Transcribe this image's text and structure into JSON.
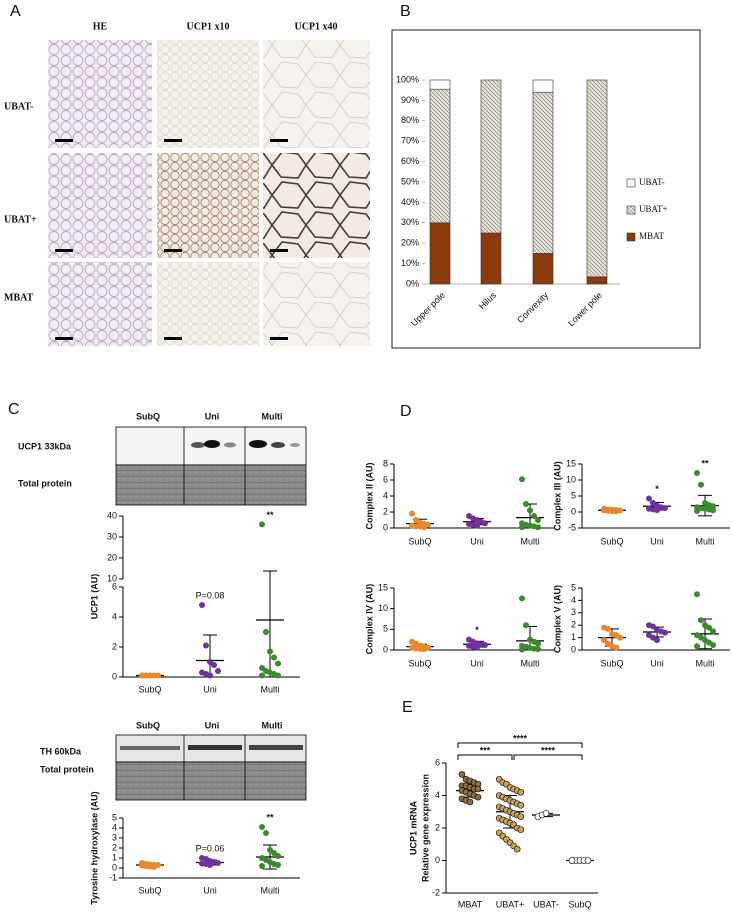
{
  "panel_labels": [
    "A",
    "B",
    "C",
    "D",
    "E"
  ],
  "histology": {
    "columns": [
      "HE",
      "UCP1 x10",
      "UCP1 x40"
    ],
    "rows": [
      "UBAT-",
      "UBAT+",
      "MBAT"
    ]
  },
  "blots": [
    {
      "groups": [
        "SubQ",
        "Uni",
        "Multi"
      ],
      "target": "UCP1 33kDa",
      "loading": "Total protein"
    },
    {
      "groups": [
        "SubQ",
        "Uni",
        "Multi"
      ],
      "target": "TH 60kDa",
      "loading": "Total protein"
    }
  ],
  "chart_data": [
    {
      "type": "stacked_bar",
      "categories": [
        "Upper pole",
        "Hilus",
        "Convexity",
        "Lower pole"
      ],
      "series": [
        {
          "name": "MBAT",
          "color": "#8b3a0e",
          "values": [
            30,
            25,
            15,
            3.5
          ]
        },
        {
          "name": "UBAT+",
          "color": "#e4dfd2",
          "hatch": true,
          "values": [
            65.5,
            75,
            79,
            96.5
          ]
        },
        {
          "name": "UBAT-",
          "color": "#ffffff",
          "values": [
            4.5,
            0,
            6,
            0
          ]
        }
      ],
      "ylim": [
        0,
        100
      ],
      "yticks": [
        {
          "value": 0,
          "label": "0%"
        },
        {
          "value": 10,
          "label": "10%"
        },
        {
          "value": 20,
          "label": "20%"
        },
        {
          "value": 30,
          "label": "30%"
        },
        {
          "value": 40,
          "label": "40%"
        },
        {
          "value": 50,
          "label": "50%"
        },
        {
          "value": 60,
          "label": "60%"
        },
        {
          "value": 70,
          "label": "70%"
        },
        {
          "value": 80,
          "label": "80%"
        },
        {
          "value": 90,
          "label": "90%"
        },
        {
          "value": 100,
          "label": "100%"
        }
      ]
    },
    {
      "type": "strip",
      "y_label": [
        "UCP1 (AU)"
      ],
      "categories": [
        "SubQ",
        "Uni",
        "Multi"
      ],
      "colors": [
        "#e8872c",
        "#7030a0",
        "#3c8a2e"
      ],
      "values": [
        [
          0.1,
          0.1,
          0.1,
          0.1,
          0.1,
          0.1,
          0.1,
          0.1
        ],
        [
          4.8,
          2.1,
          1.0,
          0.8,
          0.4,
          0.3,
          0.2,
          0.1
        ],
        [
          36,
          3.0,
          1.7,
          1.3,
          0.9,
          0.6,
          0.4,
          0.3,
          0.2,
          0.1,
          0.1
        ]
      ],
      "mean": [
        0.1,
        1.1,
        3.8
      ],
      "sd": [
        0.05,
        1.7,
        10
      ],
      "annotations": [
        {
          "category": "Uni",
          "text": "P=0.08"
        },
        {
          "category": "Multi",
          "text": "**"
        }
      ],
      "ylim": [
        0,
        40
      ],
      "y_break": [
        6,
        10
      ],
      "yticks": [
        0,
        2,
        4,
        6,
        10,
        20,
        30,
        40
      ]
    },
    {
      "type": "strip",
      "y_label": [
        "Tyrosine hydroxylase (AU)"
      ],
      "categories": [
        "SubQ",
        "Uni",
        "Multi"
      ],
      "colors": [
        "#e8872c",
        "#7030a0",
        "#3c8a2e"
      ],
      "values": [
        [
          0.5,
          0.4,
          0.35,
          0.3,
          0.3,
          0.25,
          0.2,
          0.15,
          0.1
        ],
        [
          1.0,
          0.9,
          0.7,
          0.6,
          0.5,
          0.45,
          0.4,
          0.3
        ],
        [
          4.1,
          3.5,
          1.8,
          1.5,
          1.2,
          1.0,
          0.8,
          0.6,
          0.4,
          0.3,
          0.2
        ]
      ],
      "mean": [
        0.3,
        0.55,
        1.1
      ],
      "sd": [
        0.15,
        0.25,
        1.2
      ],
      "annotations": [
        {
          "category": "Uni",
          "text": "P=0.06"
        },
        {
          "category": "Multi",
          "text": "**"
        }
      ],
      "ylim": [
        -1,
        5
      ],
      "yticks": [
        -1,
        0,
        1,
        2,
        3,
        4,
        5
      ]
    },
    {
      "type": "strip",
      "y_label": [
        "Complex II (AU)"
      ],
      "categories": [
        "SubQ",
        "Uni",
        "Multi"
      ],
      "colors": [
        "#e8872c",
        "#7030a0",
        "#3c8a2e"
      ],
      "values": [
        [
          1.8,
          1.0,
          0.7,
          0.5,
          0.4,
          0.3,
          0.2,
          0.2,
          0.1
        ],
        [
          1.5,
          1.2,
          1.0,
          0.8,
          0.6,
          0.5,
          0.4,
          0.3
        ],
        [
          6.1,
          3.0,
          2.2,
          1.5,
          1.0,
          0.6,
          0.4,
          0.3,
          0.2,
          0.1,
          0.1
        ]
      ],
      "mean": [
        0.55,
        0.8,
        1.3
      ],
      "sd": [
        0.55,
        0.4,
        1.7
      ],
      "ylim": [
        0,
        8
      ],
      "yticks": [
        0,
        2,
        4,
        6,
        8
      ]
    },
    {
      "type": "strip",
      "y_label": [
        "Complex III (AU)"
      ],
      "categories": [
        "SubQ",
        "Uni",
        "Multi"
      ],
      "colors": [
        "#e8872c",
        "#7030a0",
        "#3c8a2e"
      ],
      "values": [
        [
          1.0,
          0.8,
          0.7,
          0.6,
          0.5,
          0.5,
          0.4,
          0.3,
          0.2
        ],
        [
          4.2,
          2.8,
          2.0,
          1.5,
          1.2,
          1.0,
          0.8,
          0.6
        ],
        [
          12.2,
          8.5,
          2.8,
          2.2,
          1.8,
          1.5,
          1.2,
          1.0,
          0.8,
          0.5,
          0.3
        ]
      ],
      "mean": [
        0.55,
        1.8,
        2.0
      ],
      "sd": [
        0.25,
        1.2,
        3.2
      ],
      "annotations": [
        {
          "category": "Uni",
          "text": "*"
        },
        {
          "category": "Multi",
          "text": "**"
        }
      ],
      "ylim": [
        -5,
        15
      ],
      "yticks": [
        -5,
        0,
        5,
        10,
        15
      ]
    },
    {
      "type": "strip",
      "y_label": [
        "Complex IV (AU)"
      ],
      "categories": [
        "SubQ",
        "Uni",
        "Multi"
      ],
      "colors": [
        "#e8872c",
        "#7030a0",
        "#3c8a2e"
      ],
      "values": [
        [
          2.0,
          1.5,
          1.0,
          0.8,
          0.6,
          0.5,
          0.4,
          0.3,
          0.2
        ],
        [
          2.5,
          2.0,
          1.6,
          1.4,
          1.2,
          1.0,
          0.8,
          0.6
        ],
        [
          12.5,
          6.0,
          2.5,
          2.0,
          1.5,
          1.0,
          0.8,
          0.5,
          0.3,
          0.2,
          0.1
        ]
      ],
      "mean": [
        0.8,
        1.4,
        2.2
      ],
      "sd": [
        0.6,
        0.7,
        3.5
      ],
      "annotations": [
        {
          "category": "Uni",
          "text": "*"
        }
      ],
      "ylim": [
        0,
        15
      ],
      "yticks": [
        0,
        5,
        10,
        15
      ]
    },
    {
      "type": "strip",
      "y_label": [
        "Complex V (AU)"
      ],
      "categories": [
        "SubQ",
        "Uni",
        "Multi"
      ],
      "colors": [
        "#e8872c",
        "#7030a0",
        "#3c8a2e"
      ],
      "values": [
        [
          1.8,
          1.7,
          1.3,
          1.2,
          1.0,
          0.8,
          0.5,
          0.3,
          0.2
        ],
        [
          2.0,
          1.9,
          1.6,
          1.5,
          1.4,
          1.2,
          1.0,
          0.8
        ],
        [
          4.5,
          2.4,
          2.0,
          1.8,
          1.5,
          1.2,
          1.0,
          0.8,
          0.6,
          0.4,
          0.3
        ]
      ],
      "mean": [
        1.0,
        1.45,
        1.3
      ],
      "sd": [
        0.7,
        0.4,
        1.2
      ],
      "ylim": [
        0,
        5
      ],
      "yticks": [
        0,
        1,
        2,
        3,
        4,
        5
      ]
    },
    {
      "type": "strip",
      "y_label": [
        "UCP1 mRNA",
        "Relative gene expression"
      ],
      "categories": [
        "MBAT",
        "UBAT+",
        "UBAT-",
        "SubQ"
      ],
      "colors": [
        "#8c6d3f",
        "#c9a35a",
        "#ffffff",
        "#ffffff"
      ],
      "marker_edge": "#000000",
      "values": [
        [
          5.3,
          5.0,
          4.9,
          4.8,
          4.7,
          4.6,
          4.6,
          4.5,
          4.4,
          4.4,
          4.3,
          4.2,
          4.1,
          4.0,
          3.9,
          3.8,
          3.7,
          3.6
        ],
        [
          5.0,
          4.8,
          4.7,
          4.5,
          4.4,
          4.3,
          4.2,
          4.0,
          3.9,
          3.8,
          3.7,
          3.6,
          3.5,
          3.4,
          3.3,
          3.2,
          3.1,
          3.0,
          2.9,
          2.8,
          2.7,
          2.6,
          2.5,
          2.4,
          2.3,
          2.2,
          2.0,
          1.9,
          1.7,
          1.5,
          1.3,
          1.1,
          0.9,
          0.7
        ],
        [
          2.7,
          2.8,
          2.9
        ],
        [
          0,
          0,
          0,
          0,
          0,
          0
        ]
      ],
      "mean": [
        4.3,
        3.0,
        2.8,
        0
      ],
      "sd": [
        0.4,
        1.0,
        0.1,
        0
      ],
      "comparisons": [
        {
          "from": "MBAT",
          "to": "UBAT+",
          "text": "***"
        },
        {
          "from": "UBAT+",
          "to": "SubQ",
          "text": "****"
        },
        {
          "from": "MBAT",
          "to": "SubQ",
          "text": "****"
        }
      ],
      "ylim": [
        -2,
        6
      ],
      "yticks": [
        -2,
        0,
        2,
        4,
        6
      ]
    }
  ]
}
